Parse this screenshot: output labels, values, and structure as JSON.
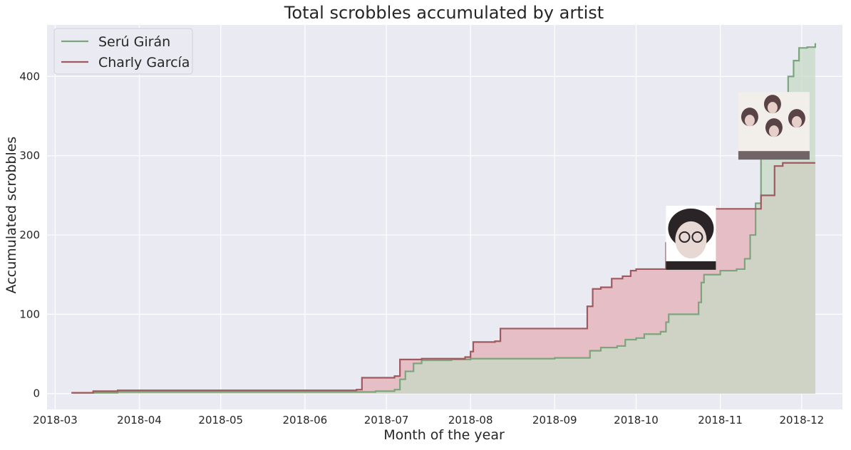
{
  "chart_data": {
    "type": "area",
    "title": "Total scrobbles accumulated by artist",
    "xlabel": "Month of the year",
    "ylabel": "Accumulated scrobbles",
    "xlim": [
      "2018-02-26",
      "2018-12-16"
    ],
    "ylim": [
      -20,
      465
    ],
    "x_ticks": [
      "2018-03",
      "2018-04",
      "2018-05",
      "2018-06",
      "2018-07",
      "2018-08",
      "2018-09",
      "2018-10",
      "2018-11",
      "2018-12"
    ],
    "y_ticks": [
      0,
      100,
      200,
      300,
      400
    ],
    "grid": true,
    "legend_position": "top-left",
    "background_color": "#eaeaf2",
    "series": [
      {
        "name": "Serú Girán",
        "color": "#7ba67c",
        "fill": "#c5d9c5",
        "points": [
          [
            "2018-03-07",
            1
          ],
          [
            "2018-03-24",
            2
          ],
          [
            "2018-06-20",
            2
          ],
          [
            "2018-06-27",
            3
          ],
          [
            "2018-07-04",
            5
          ],
          [
            "2018-07-06",
            18
          ],
          [
            "2018-07-08",
            28
          ],
          [
            "2018-07-11",
            38
          ],
          [
            "2018-07-14",
            42
          ],
          [
            "2018-07-25",
            43
          ],
          [
            "2018-08-01",
            44
          ],
          [
            "2018-08-15",
            44
          ],
          [
            "2018-09-01",
            45
          ],
          [
            "2018-09-12",
            45
          ],
          [
            "2018-09-14",
            54
          ],
          [
            "2018-09-18",
            58
          ],
          [
            "2018-09-24",
            60
          ],
          [
            "2018-09-27",
            68
          ],
          [
            "2018-10-01",
            70
          ],
          [
            "2018-10-04",
            75
          ],
          [
            "2018-10-10",
            78
          ],
          [
            "2018-10-12",
            90
          ],
          [
            "2018-10-13",
            100
          ],
          [
            "2018-10-22",
            100
          ],
          [
            "2018-10-24",
            115
          ],
          [
            "2018-10-25",
            140
          ],
          [
            "2018-10-26",
            150
          ],
          [
            "2018-11-01",
            155
          ],
          [
            "2018-11-07",
            157
          ],
          [
            "2018-11-10",
            170
          ],
          [
            "2018-11-12",
            200
          ],
          [
            "2018-11-14",
            240
          ],
          [
            "2018-11-16",
            300
          ],
          [
            "2018-11-18",
            335
          ],
          [
            "2018-11-21",
            355
          ],
          [
            "2018-11-24",
            370
          ],
          [
            "2018-11-26",
            400
          ],
          [
            "2018-11-28",
            420
          ],
          [
            "2018-11-30",
            436
          ],
          [
            "2018-12-03",
            437
          ],
          [
            "2018-12-06",
            442
          ]
        ]
      },
      {
        "name": "Charly García",
        "color": "#a1585e",
        "fill": "#e5bcc3",
        "points": [
          [
            "2018-03-07",
            1
          ],
          [
            "2018-03-15",
            3
          ],
          [
            "2018-03-24",
            4
          ],
          [
            "2018-06-20",
            5
          ],
          [
            "2018-06-22",
            20
          ],
          [
            "2018-07-04",
            22
          ],
          [
            "2018-07-06",
            43
          ],
          [
            "2018-07-14",
            44
          ],
          [
            "2018-07-30",
            46
          ],
          [
            "2018-08-01",
            53
          ],
          [
            "2018-08-02",
            65
          ],
          [
            "2018-08-10",
            66
          ],
          [
            "2018-08-12",
            82
          ],
          [
            "2018-09-12",
            82
          ],
          [
            "2018-09-13",
            110
          ],
          [
            "2018-09-15",
            132
          ],
          [
            "2018-09-18",
            134
          ],
          [
            "2018-09-22",
            145
          ],
          [
            "2018-09-26",
            148
          ],
          [
            "2018-09-29",
            155
          ],
          [
            "2018-10-01",
            157
          ],
          [
            "2018-10-10",
            157
          ],
          [
            "2018-10-12",
            190
          ],
          [
            "2018-10-26",
            210
          ],
          [
            "2018-10-28",
            233
          ],
          [
            "2018-11-14",
            233
          ],
          [
            "2018-11-16",
            250
          ],
          [
            "2018-11-21",
            287
          ],
          [
            "2018-11-24",
            291
          ],
          [
            "2018-12-06",
            291
          ]
        ]
      }
    ],
    "images": [
      {
        "name": "charly-garcia-photo",
        "x": "2018-10-12",
        "y": 210,
        "description": "portrait"
      },
      {
        "name": "seru-giran-photo",
        "x": "2018-11-15",
        "y": 340,
        "description": "band photo"
      }
    ]
  }
}
